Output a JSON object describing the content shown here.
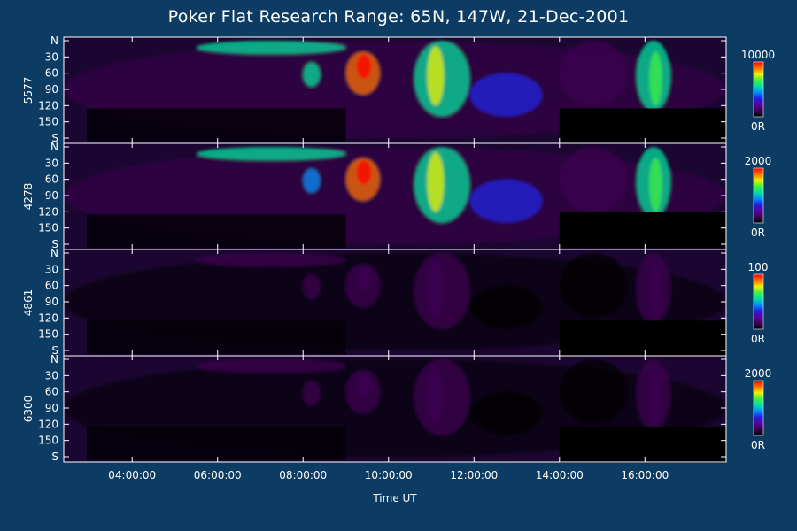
{
  "chart_data": {
    "type": "heatmap",
    "title": "Poker Flat Research Range: 65N, 147W, 21-Dec-2001",
    "xlabel": "Time UT",
    "x_ticks": [
      "04:00:00",
      "06:00:00",
      "08:00:00",
      "10:00:00",
      "12:00:00",
      "14:00:00",
      "16:00:00"
    ],
    "x_tick_hours": [
      4,
      6,
      8,
      10,
      12,
      14,
      16
    ],
    "xlim_hours": [
      2.4,
      17.9
    ],
    "y_ticks": [
      "N",
      "30",
      "60",
      "90",
      "120",
      "150",
      "S"
    ],
    "y_tick_values": [
      0,
      30,
      60,
      90,
      120,
      150,
      180
    ],
    "ylim": [
      0,
      180
    ],
    "colorscale": [
      "#000000",
      "#3c0050",
      "#5a00a0",
      "#2020e0",
      "#0090ff",
      "#00e0a0",
      "#40f040",
      "#f0f000",
      "#ff7000",
      "#ff0000"
    ],
    "panels": [
      {
        "name": "5577",
        "cbar_max": "10000",
        "cbar_min": "0R",
        "gain": 1.0
      },
      {
        "name": "4278",
        "cbar_max": "2000",
        "cbar_min": "0R",
        "gain": 0.95
      },
      {
        "name": "4861",
        "cbar_max": "100",
        "cbar_min": "0R",
        "gain": 0.15
      },
      {
        "name": "6300",
        "cbar_max": "2000",
        "cbar_min": "0R",
        "gain": 0.12
      }
    ]
  }
}
